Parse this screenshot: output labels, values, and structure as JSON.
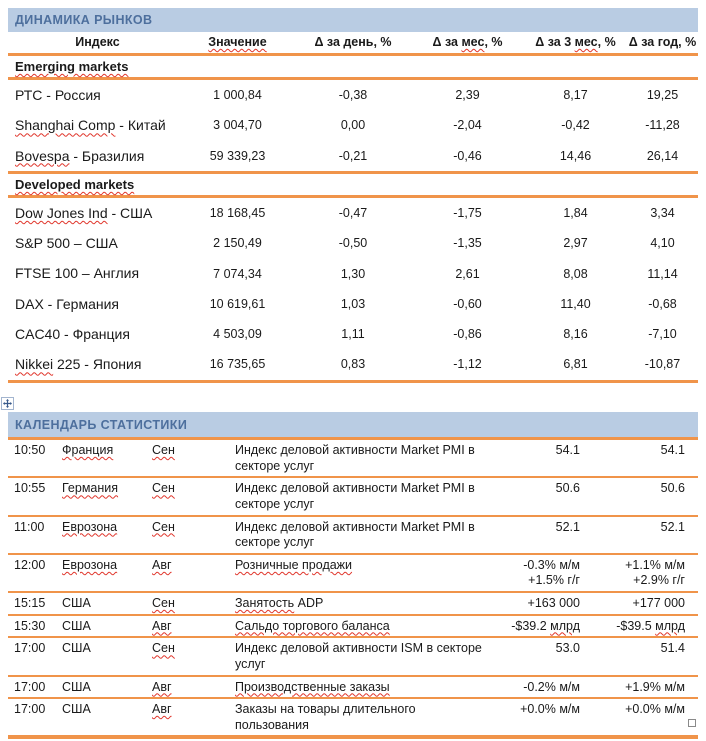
{
  "colors": {
    "orange_rule": "#F0944A",
    "banner_background": "#B9CCE3",
    "banner_text": "#4D6F9D",
    "spellcheck_squiggle": "#E0352B"
  },
  "market": {
    "title": "ДИНАМИКА РЫНКОВ",
    "columns": [
      [
        "Индекс"
      ],
      [
        {
          "t": "Значение",
          "sp": true
        }
      ],
      [
        "Δ за день, %"
      ],
      [
        "Δ за ",
        {
          "t": "мес",
          "sp": true
        },
        ", %"
      ],
      [
        "Δ за 3 ",
        {
          "t": "мес",
          "sp": true
        },
        ", %"
      ],
      [
        "Δ за год, %"
      ]
    ],
    "sections": [
      {
        "heading": [
          {
            "t": "Emerging markets",
            "sp": true
          }
        ],
        "rows": [
          {
            "label": [
              "РТС - Россия"
            ],
            "cells": [
              "1 000,84",
              "-0,38",
              "2,39",
              "8,17",
              "19,25"
            ]
          },
          {
            "label": [
              {
                "t": "Shanghai Comp",
                "sp": true
              },
              " - Китай"
            ],
            "cells": [
              "3 004,70",
              "0,00",
              "-2,04",
              "-0,42",
              "-11,28"
            ]
          },
          {
            "label": [
              {
                "t": "Bovespa",
                "sp": true
              },
              " - Бразилия"
            ],
            "cells": [
              "59 339,23",
              "-0,21",
              "-0,46",
              "14,46",
              "26,14"
            ]
          }
        ]
      },
      {
        "heading": [
          {
            "t": "Developed markets",
            "sp": true
          }
        ],
        "rows": [
          {
            "label": [
              {
                "t": "Dow Jones Ind",
                "sp": true
              },
              " - США"
            ],
            "cells": [
              "18 168,45",
              "-0,47",
              "-1,75",
              "1,84",
              "3,34"
            ]
          },
          {
            "label": [
              "S&P 500 – США"
            ],
            "cells": [
              "2 150,49",
              "-0,50",
              "-1,35",
              "2,97",
              "4,10"
            ]
          },
          {
            "label": [
              "FTSE 100  – Англия"
            ],
            "cells": [
              "7 074,34",
              "1,30",
              "2,61",
              "8,08",
              "11,14"
            ]
          },
          {
            "label": [
              "DAX - Германия"
            ],
            "cells": [
              "10 619,61",
              "1,03",
              "-0,60",
              "11,40",
              "-0,68"
            ]
          },
          {
            "label": [
              "CAC40 - Франция"
            ],
            "cells": [
              "4 503,09",
              "1,11",
              "-0,86",
              "8,16",
              "-7,10"
            ]
          },
          {
            "label": [
              {
                "t": "Nikkei",
                "sp": true
              },
              " 225 - Япония"
            ],
            "cells": [
              "16 735,65",
              "0,83",
              "-1,12",
              "6,81",
              "-10,87"
            ]
          }
        ]
      }
    ]
  },
  "calendar": {
    "title": "КАЛЕНДАРЬ СТАТИСТИКИ",
    "rows": [
      {
        "time": "10:50",
        "country": [
          {
            "t": "Франция",
            "sp": true
          }
        ],
        "month": [
          {
            "t": "Сен",
            "sp": true
          }
        ],
        "event": [
          "Индекс деловой активности Market PMI в секторе услуг"
        ],
        "forecast": [
          "54.1"
        ],
        "previous": [
          "54.1"
        ]
      },
      {
        "time": "10:55",
        "country": [
          {
            "t": "Германия",
            "sp": true
          }
        ],
        "month": [
          {
            "t": "Сен",
            "sp": true
          }
        ],
        "event": [
          "Индекс деловой активности Market PMI в секторе услуг"
        ],
        "forecast": [
          "50.6"
        ],
        "previous": [
          "50.6"
        ]
      },
      {
        "time": "11:00",
        "country": [
          {
            "t": "Еврозона",
            "sp": true
          }
        ],
        "month": [
          {
            "t": "Сен",
            "sp": true
          }
        ],
        "event": [
          "Индекс деловой активности Market PMI в секторе услуг"
        ],
        "forecast": [
          "52.1"
        ],
        "previous": [
          "52.1"
        ]
      },
      {
        "time": "12:00",
        "country": [
          {
            "t": "Еврозона",
            "sp": true
          }
        ],
        "month": [
          {
            "t": "Авг",
            "sp": true
          }
        ],
        "event": [
          {
            "t": "Розничные продажи",
            "sp": true
          }
        ],
        "forecast": [
          "-0.3% м/м",
          "\n",
          "+1.5% г/г"
        ],
        "previous": [
          "+1.1% м/м",
          "\n",
          "+2.9% г/г"
        ]
      },
      {
        "time": "15:15",
        "country": [
          "США"
        ],
        "month": [
          {
            "t": "Сен",
            "sp": true
          }
        ],
        "event": [
          {
            "t": "Занятость",
            "sp": true
          },
          " ADP"
        ],
        "forecast": [
          "+163 000"
        ],
        "previous": [
          "+177 000"
        ]
      },
      {
        "time": "15:30",
        "country": [
          "США"
        ],
        "month": [
          {
            "t": "Авг",
            "sp": true
          }
        ],
        "event": [
          {
            "t": "Сальдо торгового баланса",
            "sp": true
          }
        ],
        "forecast": [
          "-$39.2 ",
          {
            "t": "млрд",
            "sp": true
          }
        ],
        "previous": [
          "-$39.5 ",
          {
            "t": "млрд",
            "sp": true
          }
        ]
      },
      {
        "time": "17:00",
        "country": [
          "США"
        ],
        "month": [
          {
            "t": "Сен",
            "sp": true
          }
        ],
        "event": [
          "Индекс деловой активности ISM в секторе услуг"
        ],
        "forecast": [
          "53.0"
        ],
        "previous": [
          "51.4"
        ]
      },
      {
        "time": "17:00",
        "country": [
          "США"
        ],
        "month": [
          {
            "t": "Авг",
            "sp": true
          }
        ],
        "event": [
          {
            "t": "Производственные заказы",
            "sp": true
          }
        ],
        "forecast": [
          "-0.2% м/м"
        ],
        "previous": [
          "+1.9% м/м"
        ]
      },
      {
        "time": "17:00",
        "country": [
          "США"
        ],
        "month": [
          {
            "t": "Авг",
            "sp": true
          }
        ],
        "event": [
          "Заказы на товары длительного пользования"
        ],
        "forecast": [
          "+0.0% м/м"
        ],
        "previous": [
          "+0.0% м/м"
        ]
      }
    ]
  }
}
